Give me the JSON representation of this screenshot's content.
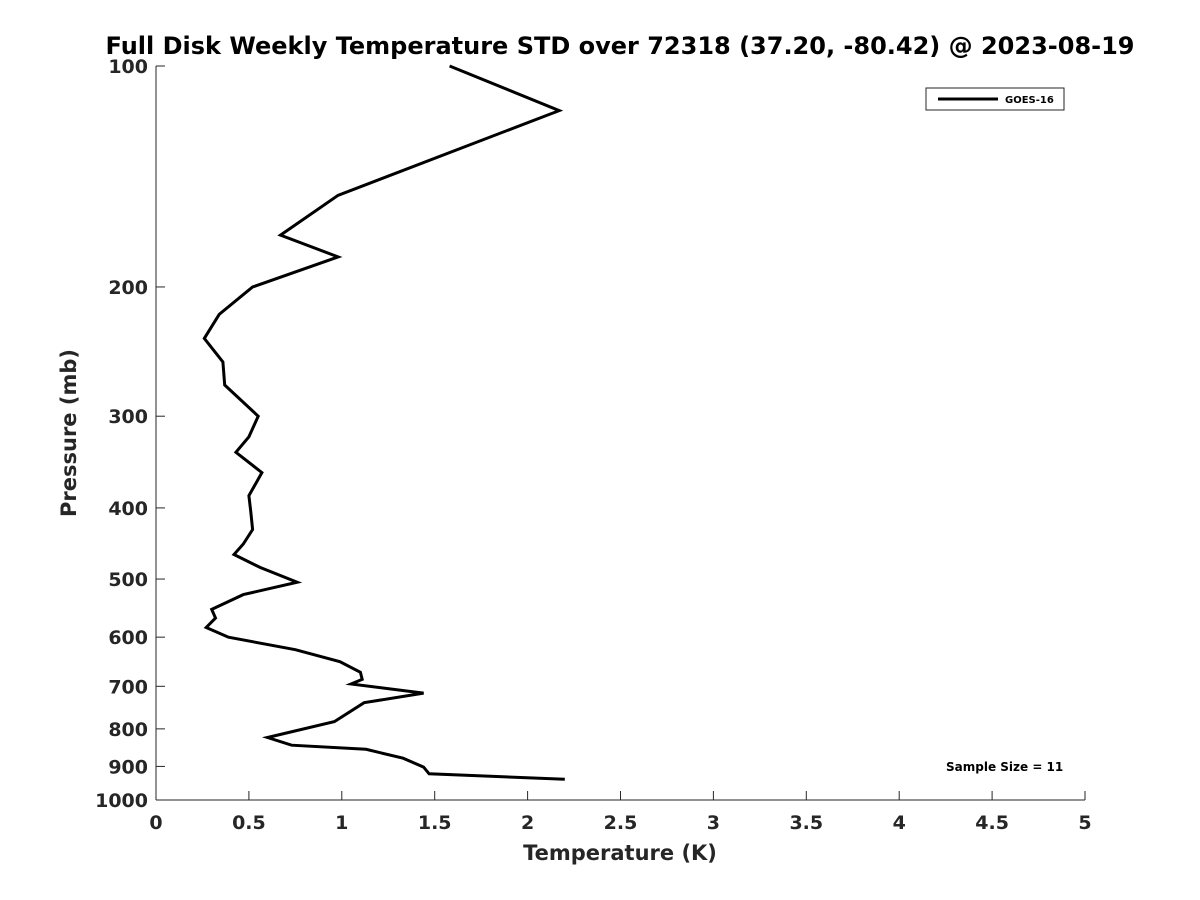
{
  "chart_data": {
    "type": "line",
    "title": "Full Disk Weekly Temperature STD over 72318 (37.20, -80.42) @ 2023-08-19",
    "xlabel": "Temperature (K)",
    "ylabel": "Pressure (mb)",
    "xlim": [
      0,
      5
    ],
    "ylim": [
      100,
      1000
    ],
    "y_scale": "log",
    "y_reversed": true,
    "x_ticks": [
      0,
      0.5,
      1,
      1.5,
      2,
      2.5,
      3,
      3.5,
      4,
      4.5,
      5
    ],
    "x_tick_labels": [
      "0",
      "0.5",
      "1",
      "1.5",
      "2",
      "2.5",
      "3",
      "3.5",
      "4",
      "4.5",
      "5"
    ],
    "y_ticks": [
      100,
      200,
      300,
      400,
      500,
      600,
      700,
      800,
      900,
      1000
    ],
    "y_tick_labels": [
      "100",
      "200",
      "300",
      "400",
      "500",
      "600",
      "700",
      "800",
      "900",
      "1000"
    ],
    "grid": false,
    "legend_position": "top-right",
    "annotation": "Sample Size = 11",
    "series": [
      {
        "name": "GOES-16",
        "color": "#000000",
        "points": [
          [
            1.58,
            100
          ],
          [
            2.17,
            115
          ],
          [
            0.98,
            150
          ],
          [
            0.67,
            170
          ],
          [
            0.98,
            182
          ],
          [
            0.52,
            200
          ],
          [
            0.34,
            218
          ],
          [
            0.26,
            235
          ],
          [
            0.36,
            253
          ],
          [
            0.37,
            272
          ],
          [
            0.55,
            300
          ],
          [
            0.5,
            320
          ],
          [
            0.43,
            336
          ],
          [
            0.57,
            358
          ],
          [
            0.5,
            385
          ],
          [
            0.51,
            405
          ],
          [
            0.52,
            428
          ],
          [
            0.47,
            448
          ],
          [
            0.42,
            463
          ],
          [
            0.56,
            482
          ],
          [
            0.76,
            505
          ],
          [
            0.47,
            525
          ],
          [
            0.3,
            550
          ],
          [
            0.32,
            565
          ],
          [
            0.27,
            582
          ],
          [
            0.39,
            600
          ],
          [
            0.75,
            624
          ],
          [
            0.99,
            648
          ],
          [
            1.1,
            670
          ],
          [
            1.11,
            685
          ],
          [
            1.05,
            695
          ],
          [
            1.44,
            715
          ],
          [
            1.12,
            737
          ],
          [
            0.96,
            782
          ],
          [
            0.6,
            822
          ],
          [
            0.73,
            842
          ],
          [
            1.13,
            853
          ],
          [
            1.33,
            877
          ],
          [
            1.44,
            902
          ],
          [
            1.47,
            921
          ],
          [
            2.2,
            937
          ]
        ]
      }
    ]
  }
}
